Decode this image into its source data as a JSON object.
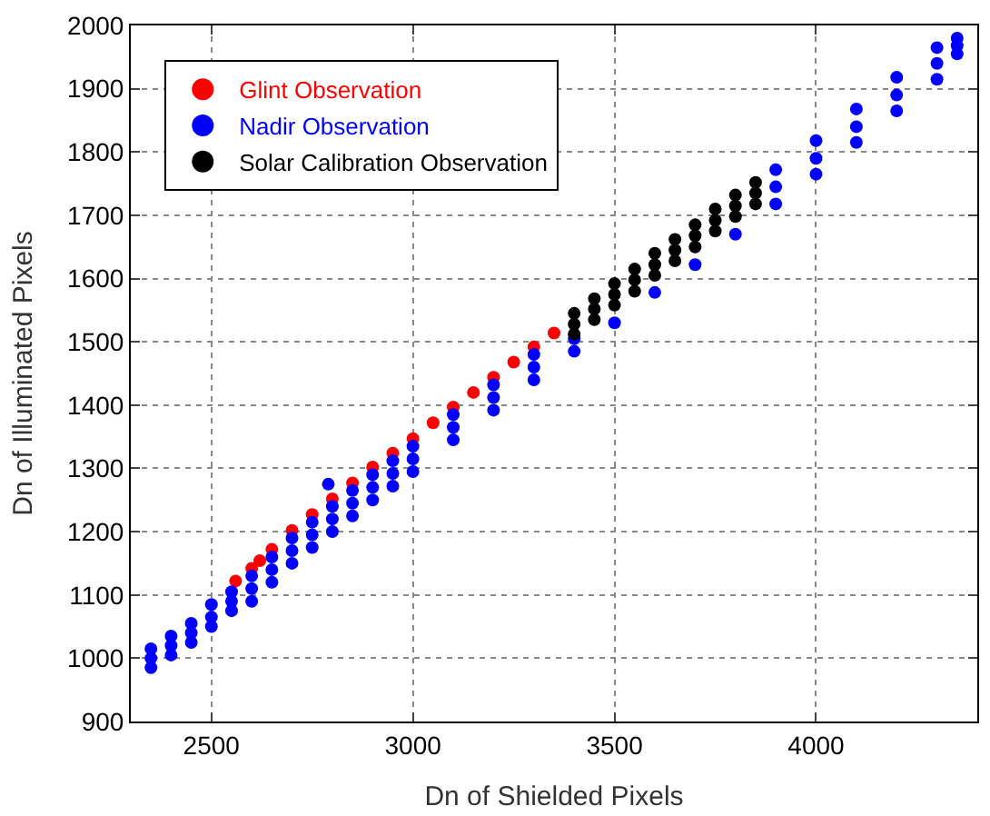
{
  "chart_data": {
    "type": "scatter",
    "xlabel": "Dn of Shielded Pixels",
    "ylabel": "Dn of Illuminated Pixels",
    "xlim": [
      2300,
      4400
    ],
    "xticks": [
      2500,
      3000,
      3500,
      4000
    ],
    "ylim": [
      900,
      2000
    ],
    "yticks": [
      900,
      1000,
      1100,
      1200,
      1300,
      1400,
      1500,
      1600,
      1700,
      1800,
      1900,
      2000
    ],
    "grid": true,
    "legend": "top left",
    "marker": "circle",
    "series": [
      {
        "name": "Glint Observation",
        "color": "#ff0000",
        "x": [
          2560,
          2600,
          2620,
          2650,
          2700,
          2750,
          2800,
          2850,
          2900,
          2950,
          3000,
          3050,
          3100,
          3150,
          3200,
          3250,
          3300,
          3350
        ],
        "values": [
          1122,
          1142,
          1154,
          1172,
          1202,
          1227,
          1252,
          1277,
          1302,
          1324,
          1347,
          1372,
          1397,
          1420,
          1444,
          1468,
          1492,
          1514
        ]
      },
      {
        "name": "Nadir Observation",
        "color": "#0000ff",
        "x": [
          2350,
          2400,
          2450,
          2500,
          2550,
          2600,
          2650,
          2700,
          2750,
          2800,
          2850,
          2900,
          2950,
          3000,
          3100,
          3200,
          3300,
          3400,
          3900,
          4000,
          4100,
          4200,
          4300,
          4350,
          2350,
          2400,
          2450,
          2500,
          2550,
          2600,
          2650,
          2700,
          2750,
          2800,
          2850,
          2900,
          2950,
          3000,
          3100,
          3200,
          3300,
          3900,
          4000,
          4100,
          4200,
          4300,
          4350,
          2350,
          2400,
          2450,
          2500,
          2550,
          2600,
          2650,
          2700,
          2750,
          2800,
          2850,
          2900,
          2950,
          3000,
          3100,
          3200,
          3300,
          3400,
          3500,
          3600,
          3700,
          3800,
          3900,
          4000,
          4100,
          4200,
          4300,
          4350,
          2790
        ],
        "values": [
          1000,
          1020,
          1040,
          1065,
          1090,
          1110,
          1140,
          1170,
          1195,
          1220,
          1245,
          1270,
          1292,
          1315,
          1365,
          1412,
          1460,
          1505,
          1745,
          1790,
          1840,
          1890,
          1940,
          1968,
          1015,
          1035,
          1055,
          1085,
          1105,
          1130,
          1160,
          1190,
          1215,
          1240,
          1265,
          1290,
          1312,
          1335,
          1385,
          1432,
          1480,
          1772,
          1818,
          1868,
          1918,
          1965,
          1980,
          985,
          1005,
          1025,
          1050,
          1075,
          1090,
          1120,
          1150,
          1175,
          1200,
          1225,
          1250,
          1272,
          1295,
          1345,
          1392,
          1440,
          1485,
          1530,
          1578,
          1622,
          1670,
          1718,
          1765,
          1815,
          1865,
          1915,
          1955,
          1275
        ]
      },
      {
        "name": "Solar Calibration Observation",
        "color": "#000000",
        "x": [
          3400,
          3450,
          3500,
          3550,
          3600,
          3650,
          3700,
          3750,
          3800,
          3850,
          3400,
          3450,
          3500,
          3550,
          3600,
          3650,
          3700,
          3750,
          3800,
          3850,
          3400,
          3450,
          3500,
          3550,
          3600,
          3650,
          3700,
          3750,
          3800,
          3850
        ],
        "values": [
          1545,
          1568,
          1592,
          1615,
          1640,
          1662,
          1685,
          1710,
          1732,
          1752,
          1528,
          1552,
          1575,
          1598,
          1622,
          1645,
          1668,
          1692,
          1715,
          1735,
          1512,
          1535,
          1558,
          1580,
          1605,
          1628,
          1650,
          1675,
          1698,
          1718
        ]
      }
    ]
  }
}
